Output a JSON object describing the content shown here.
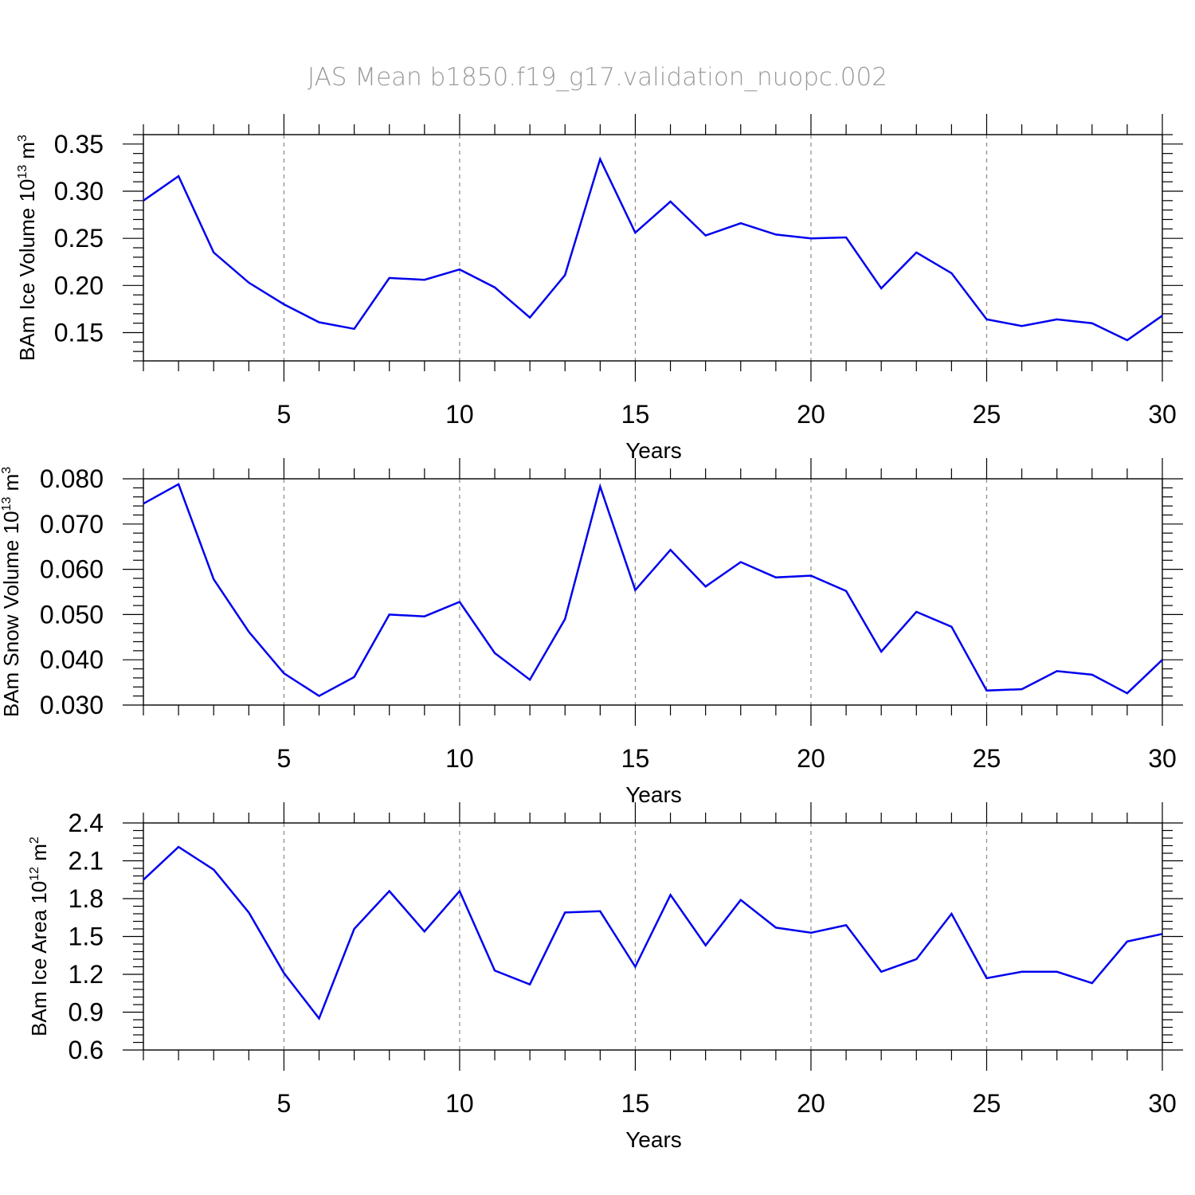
{
  "title": "JAS Mean b1850.f19_g17.validation_nuopc.002",
  "colors": {
    "line": "#0000ee",
    "grid": "#888888",
    "axis": "#000000",
    "title": "#9a9a9a"
  },
  "chart_data": [
    {
      "type": "line",
      "xlabel": "Years",
      "ylabel": "BAm Ice Volume 10",
      "ylabel_exp": "13",
      "ylabel_unit": " m",
      "ylabel_unit_exp": "3",
      "xlim": [
        1,
        30
      ],
      "ylim": [
        0.12,
        0.36
      ],
      "xticks": [
        5,
        10,
        15,
        20,
        25,
        30
      ],
      "xtick_labels": [
        "5",
        "10",
        "15",
        "20",
        "25",
        "30"
      ],
      "yticks": [
        0.15,
        0.2,
        0.25,
        0.3,
        0.35
      ],
      "ytick_labels": [
        "0.15",
        "0.20",
        "0.25",
        "0.30",
        "0.35"
      ],
      "grid": "x-dashed",
      "x": [
        1,
        2,
        3,
        4,
        5,
        6,
        7,
        8,
        9,
        10,
        11,
        12,
        13,
        14,
        15,
        16,
        17,
        18,
        19,
        20,
        21,
        22,
        23,
        24,
        25,
        26,
        27,
        28,
        29,
        30
      ],
      "series": [
        {
          "values": [
            0.29,
            0.316,
            0.235,
            0.203,
            0.18,
            0.161,
            0.154,
            0.208,
            0.206,
            0.217,
            0.198,
            0.166,
            0.211,
            0.334,
            0.256,
            0.289,
            0.253,
            0.266,
            0.254,
            0.25,
            0.251,
            0.197,
            0.235,
            0.213,
            0.164,
            0.157,
            0.164,
            0.16,
            0.142,
            0.168
          ]
        }
      ]
    },
    {
      "type": "line",
      "xlabel": "Years",
      "ylabel": "BAm Snow Volume 10",
      "ylabel_exp": "13",
      "ylabel_unit": " m",
      "ylabel_unit_exp": "3",
      "xlim": [
        1,
        30
      ],
      "ylim": [
        0.03,
        0.08
      ],
      "xticks": [
        5,
        10,
        15,
        20,
        25,
        30
      ],
      "xtick_labels": [
        "5",
        "10",
        "15",
        "20",
        "25",
        "30"
      ],
      "yticks": [
        0.03,
        0.04,
        0.05,
        0.06,
        0.07,
        0.08
      ],
      "ytick_labels": [
        "0.030",
        "0.040",
        "0.050",
        "0.060",
        "0.070",
        "0.080"
      ],
      "grid": "x-dashed",
      "x": [
        1,
        2,
        3,
        4,
        5,
        6,
        7,
        8,
        9,
        10,
        11,
        12,
        13,
        14,
        15,
        16,
        17,
        18,
        19,
        20,
        21,
        22,
        23,
        24,
        25,
        26,
        27,
        28,
        29,
        30
      ],
      "series": [
        {
          "values": [
            0.0745,
            0.0788,
            0.0578,
            0.0462,
            0.037,
            0.032,
            0.0362,
            0.05,
            0.0496,
            0.0528,
            0.0415,
            0.0356,
            0.049,
            0.0783,
            0.0554,
            0.0643,
            0.0562,
            0.0616,
            0.0582,
            0.0586,
            0.0552,
            0.0418,
            0.0506,
            0.0473,
            0.0332,
            0.0335,
            0.0375,
            0.0367,
            0.0326,
            0.04
          ]
        }
      ]
    },
    {
      "type": "line",
      "xlabel": "Years",
      "ylabel": "BAm Ice Area 10",
      "ylabel_exp": "12",
      "ylabel_unit": " m",
      "ylabel_unit_exp": "2",
      "xlim": [
        1,
        30
      ],
      "ylim": [
        0.6,
        2.4
      ],
      "xticks": [
        5,
        10,
        15,
        20,
        25,
        30
      ],
      "xtick_labels": [
        "5",
        "10",
        "15",
        "20",
        "25",
        "30"
      ],
      "yticks": [
        0.6,
        0.9,
        1.2,
        1.5,
        1.8,
        2.1,
        2.4
      ],
      "ytick_labels": [
        "0.6",
        "0.9",
        "1.2",
        "1.5",
        "1.8",
        "2.1",
        "2.4"
      ],
      "grid": "x-dashed",
      "x": [
        1,
        2,
        3,
        4,
        5,
        6,
        7,
        8,
        9,
        10,
        11,
        12,
        13,
        14,
        15,
        16,
        17,
        18,
        19,
        20,
        21,
        22,
        23,
        24,
        25,
        26,
        27,
        28,
        29,
        30
      ],
      "series": [
        {
          "values": [
            1.95,
            2.21,
            2.03,
            1.69,
            1.21,
            0.85,
            1.56,
            1.86,
            1.54,
            1.86,
            1.23,
            1.12,
            1.69,
            1.7,
            1.26,
            1.83,
            1.43,
            1.79,
            1.57,
            1.53,
            1.59,
            1.22,
            1.32,
            1.68,
            1.17,
            1.22,
            1.22,
            1.13,
            1.46,
            1.52
          ]
        }
      ]
    }
  ]
}
